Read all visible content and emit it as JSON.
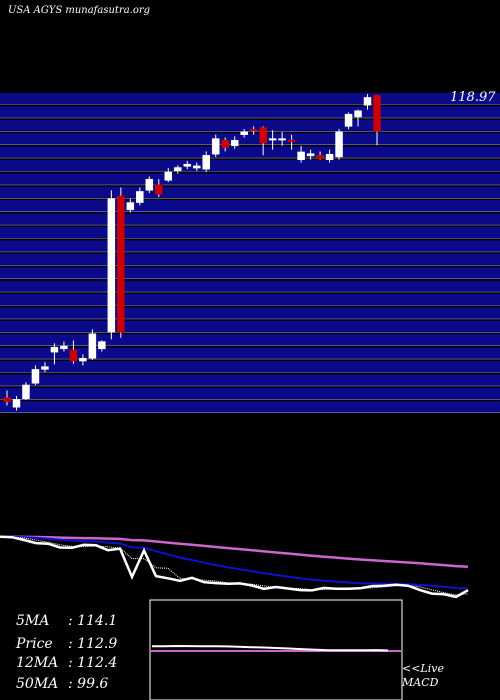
{
  "title": "USA AGYS munafasutra.org",
  "colors": {
    "background": "#000000",
    "grid_band": "#0a0a8a",
    "grid_line": "#8888cc",
    "up_candle": "#ffffff",
    "down_candle": "#cc0000",
    "wick": "#ffffff",
    "price_line": "#ffffff",
    "ma_short": "#ffffff",
    "ma_mid": "#1010cc",
    "ma_long": "#cc66cc",
    "macd_line": "#ffffff",
    "macd_signal": "#cc66cc",
    "macd_border": "#ffffff"
  },
  "stats": [
    {
      "label": "5MA",
      "value": "114.1"
    },
    {
      "label": "Price",
      "value": "112.9"
    },
    {
      "label": "12MA",
      "value": "112.4"
    },
    {
      "label": "50MA",
      "value": "99.6"
    }
  ],
  "macd_label_1": "<<Live",
  "macd_label_2": "MACD",
  "chart_data": {
    "type": "candlestick",
    "y_top_label": "118.97",
    "grid": true,
    "candles": [
      {
        "o": 68.2,
        "h": 69.5,
        "l": 66.8,
        "c": 67.5
      },
      {
        "o": 66.5,
        "h": 68.5,
        "l": 65.9,
        "c": 67.9
      },
      {
        "o": 68.0,
        "h": 71.0,
        "l": 67.8,
        "c": 70.5
      },
      {
        "o": 70.8,
        "h": 74.0,
        "l": 70.5,
        "c": 73.3
      },
      {
        "o": 73.3,
        "h": 74.6,
        "l": 72.8,
        "c": 73.8
      },
      {
        "o": 76.4,
        "h": 78.0,
        "l": 74.2,
        "c": 77.3
      },
      {
        "o": 77.0,
        "h": 78.3,
        "l": 76.5,
        "c": 77.5
      },
      {
        "o": 76.8,
        "h": 78.5,
        "l": 74.3,
        "c": 74.8
      },
      {
        "o": 74.8,
        "h": 76.0,
        "l": 74.0,
        "c": 75.3
      },
      {
        "o": 75.3,
        "h": 80.5,
        "l": 75.0,
        "c": 79.7
      },
      {
        "o": 77.0,
        "h": 78.5,
        "l": 76.5,
        "c": 78.3
      },
      {
        "o": 80.0,
        "h": 105.5,
        "l": 78.7,
        "c": 104.0
      },
      {
        "o": 104.5,
        "h": 106.0,
        "l": 79.0,
        "c": 80.0
      },
      {
        "o": 102.0,
        "h": 104.0,
        "l": 101.5,
        "c": 103.3
      },
      {
        "o": 103.3,
        "h": 106.0,
        "l": 102.8,
        "c": 105.3
      },
      {
        "o": 105.5,
        "h": 108.0,
        "l": 105.0,
        "c": 107.5
      },
      {
        "o": 106.5,
        "h": 107.5,
        "l": 104.3,
        "c": 104.8
      },
      {
        "o": 107.3,
        "h": 109.5,
        "l": 107.0,
        "c": 108.8
      },
      {
        "o": 109.0,
        "h": 110.0,
        "l": 108.5,
        "c": 109.6
      },
      {
        "o": 109.8,
        "h": 110.8,
        "l": 109.3,
        "c": 110.2
      },
      {
        "o": 109.5,
        "h": 110.5,
        "l": 109.0,
        "c": 109.9
      },
      {
        "o": 109.3,
        "h": 112.5,
        "l": 108.8,
        "c": 111.8
      },
      {
        "o": 112.0,
        "h": 115.5,
        "l": 111.5,
        "c": 114.8
      },
      {
        "o": 114.5,
        "h": 115.0,
        "l": 112.5,
        "c": 113.2
      },
      {
        "o": 113.5,
        "h": 115.2,
        "l": 113.0,
        "c": 114.5
      },
      {
        "o": 115.5,
        "h": 116.5,
        "l": 115.0,
        "c": 116.0
      },
      {
        "o": 116.5,
        "h": 117.0,
        "l": 115.5,
        "c": 116.3
      },
      {
        "o": 116.8,
        "h": 117.0,
        "l": 111.8,
        "c": 114.0
      },
      {
        "o": 114.8,
        "h": 116.3,
        "l": 112.8,
        "c": 114.8
      },
      {
        "o": 114.8,
        "h": 116.0,
        "l": 113.5,
        "c": 114.8
      },
      {
        "o": 114.5,
        "h": 115.5,
        "l": 112.8,
        "c": 114.4
      },
      {
        "o": 111.0,
        "h": 113.5,
        "l": 110.5,
        "c": 112.4
      },
      {
        "o": 111.7,
        "h": 112.8,
        "l": 111.0,
        "c": 112.1
      },
      {
        "o": 111.8,
        "h": 112.5,
        "l": 111.0,
        "c": 111.2
      },
      {
        "o": 111.0,
        "h": 112.8,
        "l": 110.5,
        "c": 112.0
      },
      {
        "o": 111.5,
        "h": 116.5,
        "l": 111.0,
        "c": 116.0
      },
      {
        "o": 117.0,
        "h": 119.5,
        "l": 116.5,
        "c": 119.2
      },
      {
        "o": 118.7,
        "h": 120.0,
        "l": 117.0,
        "c": 119.8
      },
      {
        "o": 120.8,
        "h": 122.8,
        "l": 120.0,
        "c": 122.2
      },
      {
        "o": 122.6,
        "h": 122.6,
        "l": 113.6,
        "c": 116.1
      }
    ]
  }
}
